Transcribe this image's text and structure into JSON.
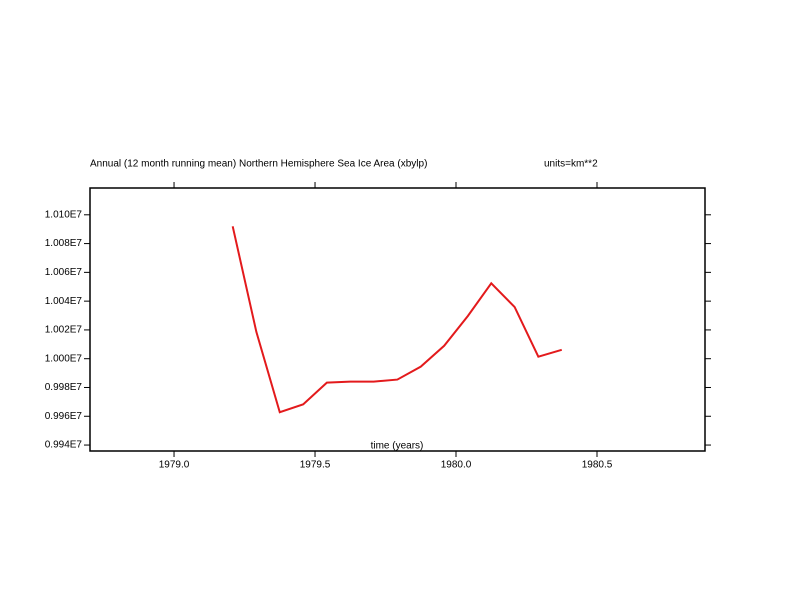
{
  "chart_data": {
    "type": "line",
    "title": "Annual (12 month running mean) Northern Hemisphere Sea Ice Area (xbylp)",
    "subtitle": "units=km**2",
    "x_label": "time (years)",
    "series": [
      {
        "name": "Sea Ice Area",
        "color": "#e31a1c",
        "x": [
          1979.208,
          1979.292,
          1979.375,
          1979.458,
          1979.542,
          1979.625,
          1979.708,
          1979.792,
          1979.875,
          1979.958,
          1980.042,
          1980.125,
          1980.208,
          1980.292,
          1980.375
        ],
        "values": [
          10092000,
          10018600,
          9962800,
          9968300,
          9983400,
          9984100,
          9984100,
          9985500,
          9994500,
          10009000,
          10029700,
          10052400,
          10035900,
          10001400,
          10006200
        ]
      }
    ],
    "xlim": [
      1978.702,
      1980.883
    ],
    "ylim": [
      9935862,
      10118621
    ],
    "xticks": [
      {
        "value": 1979.0,
        "label": "1979.0"
      },
      {
        "value": 1979.5,
        "label": "1979.5"
      },
      {
        "value": 1980.0,
        "label": "1980.0"
      },
      {
        "value": 1980.5,
        "label": "1980.5"
      }
    ],
    "yticks": [
      {
        "value": 9940000,
        "label": "0.994E7"
      },
      {
        "value": 9960000,
        "label": "0.996E7"
      },
      {
        "value": 9980000,
        "label": "0.998E7"
      },
      {
        "value": 10000000,
        "label": "1.000E7"
      },
      {
        "value": 10020000,
        "label": "1.002E7"
      },
      {
        "value": 10040000,
        "label": "1.004E7"
      },
      {
        "value": 10060000,
        "label": "1.006E7"
      },
      {
        "value": 10080000,
        "label": "1.008E7"
      },
      {
        "value": 10100000,
        "label": "1.010E7"
      }
    ]
  }
}
